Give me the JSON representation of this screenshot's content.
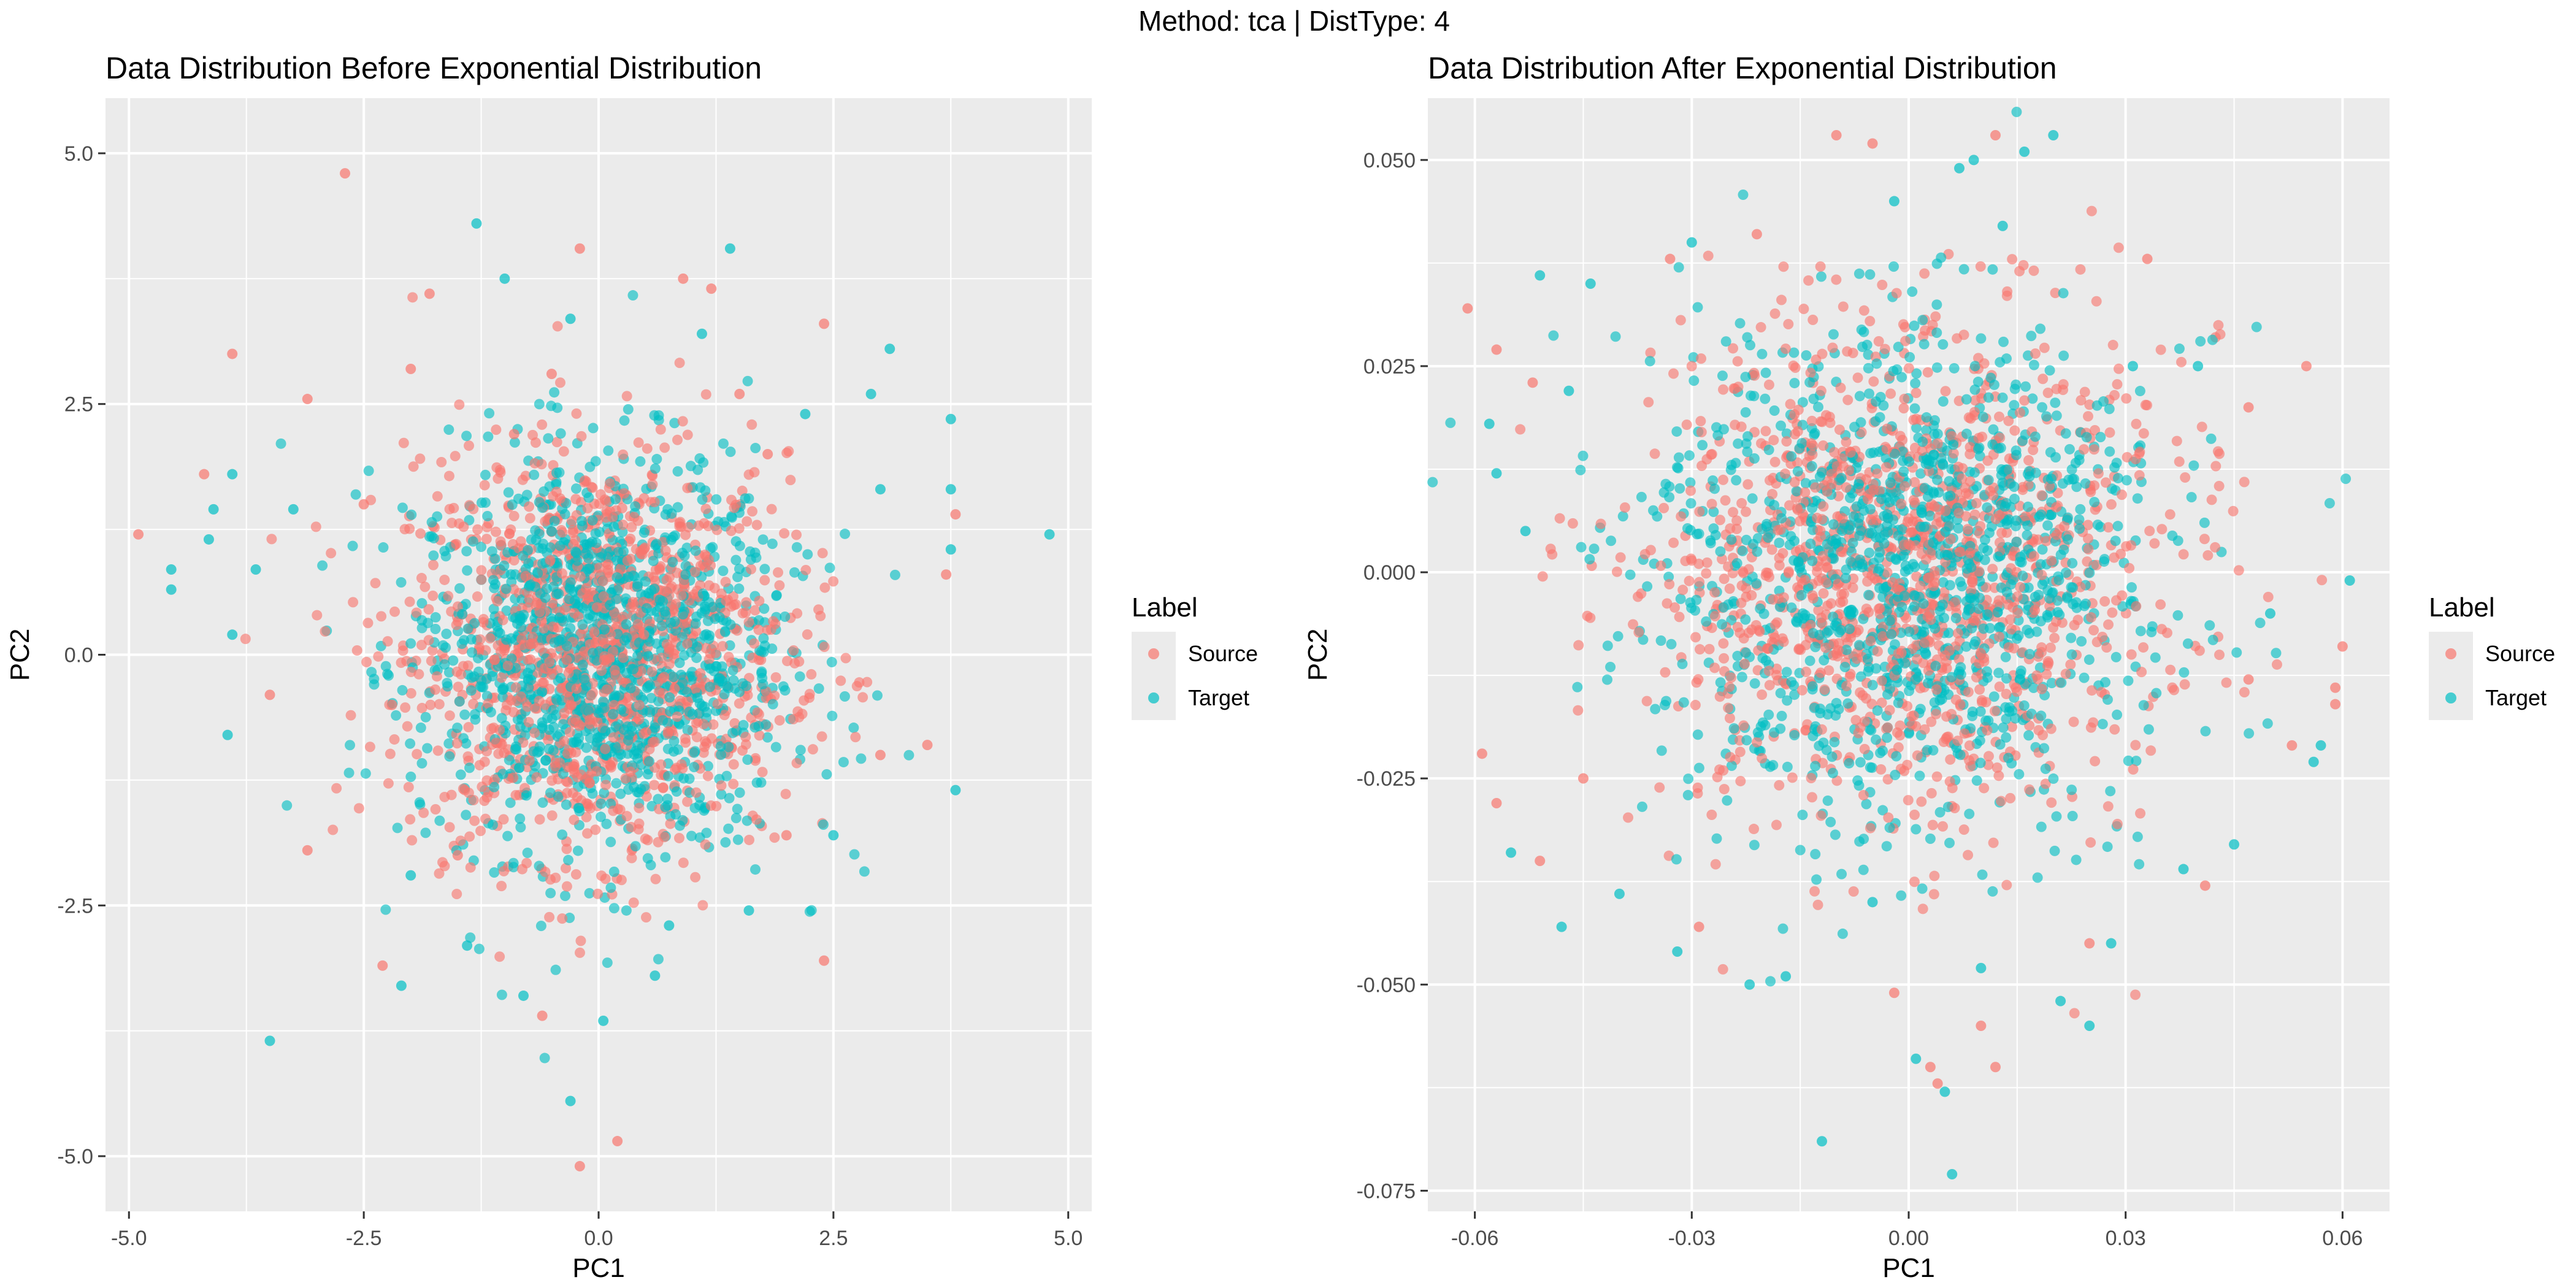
{
  "suptitle": "Method: tca | DistType: 4",
  "colors": {
    "source": "#F8766D",
    "target": "#00BFC4",
    "panel": "#EBEBEB",
    "grid": "#FFFFFF",
    "axis_text": "#4D4D4D"
  },
  "chart_data": [
    {
      "type": "scatter",
      "title": "Data Distribution Before Exponential Distribution",
      "xlabel": "PC1",
      "ylabel": "PC2",
      "xlim": [
        -5.25,
        5.25
      ],
      "ylim": [
        -5.55,
        5.55
      ],
      "xticks": [
        -5.0,
        -2.5,
        0.0,
        2.5,
        5.0
      ],
      "xtick_labels": [
        "-5.0",
        "-2.5",
        "0.0",
        "2.5",
        "5.0"
      ],
      "yticks": [
        -5.0,
        -2.5,
        0.0,
        2.5,
        5.0
      ],
      "ytick_labels": [
        "-5.0",
        "-2.5",
        "0.0",
        "2.5",
        "5.0"
      ],
      "grid": true,
      "legend": {
        "title": "Label",
        "position": "right",
        "entries": [
          "Source",
          "Target"
        ]
      },
      "series": [
        {
          "name": "Source",
          "color": "#F8766D",
          "points": [
            [
              -2.7,
              4.8
            ],
            [
              -0.2,
              4.05
            ],
            [
              1.2,
              3.65
            ],
            [
              -1.8,
              3.6
            ],
            [
              -3.9,
              3.0
            ],
            [
              -0.5,
              2.8
            ],
            [
              1.5,
              2.6
            ],
            [
              2.4,
              3.3
            ],
            [
              -2.0,
              2.85
            ],
            [
              0.9,
              3.75
            ],
            [
              -3.1,
              2.55
            ],
            [
              -4.2,
              1.8
            ],
            [
              -4.9,
              1.2
            ],
            [
              -3.5,
              -0.4
            ],
            [
              -3.1,
              -1.95
            ],
            [
              -2.3,
              -3.1
            ],
            [
              -0.6,
              -3.6
            ],
            [
              -0.2,
              -5.1
            ],
            [
              0.2,
              -4.85
            ],
            [
              2.4,
              -3.05
            ],
            [
              3.7,
              0.8
            ],
            [
              3.5,
              -0.9
            ],
            [
              3.0,
              -1.0
            ],
            [
              3.8,
              1.4
            ],
            [
              -0.9,
              2.2
            ],
            [
              1.8,
              2.0
            ],
            [
              -1.5,
              -2.0
            ],
            [
              2.0,
              -1.8
            ],
            [
              -2.5,
              1.5
            ],
            [
              -2.2,
              -0.5
            ]
          ]
        },
        {
          "name": "Target",
          "color": "#00BFC4",
          "points": [
            [
              -1.3,
              4.3
            ],
            [
              1.4,
              4.05
            ],
            [
              -1.0,
              3.75
            ],
            [
              -0.3,
              3.35
            ],
            [
              3.1,
              3.05
            ],
            [
              2.9,
              2.6
            ],
            [
              3.75,
              2.35
            ],
            [
              3.0,
              1.65
            ],
            [
              4.8,
              1.2
            ],
            [
              3.75,
              1.65
            ],
            [
              3.75,
              1.05
            ],
            [
              -4.55,
              0.85
            ],
            [
              -4.55,
              0.65
            ],
            [
              -4.1,
              1.45
            ],
            [
              -4.15,
              1.15
            ],
            [
              -3.9,
              1.8
            ],
            [
              -3.65,
              0.85
            ],
            [
              -3.9,
              0.2
            ],
            [
              -3.95,
              -0.8
            ],
            [
              -3.25,
              1.45
            ],
            [
              -3.5,
              -3.85
            ],
            [
              -2.1,
              -3.3
            ],
            [
              -0.3,
              -4.45
            ],
            [
              0.05,
              -3.65
            ],
            [
              0.6,
              -3.2
            ],
            [
              1.6,
              -2.55
            ],
            [
              2.5,
              -1.8
            ],
            [
              3.8,
              -1.35
            ],
            [
              -1.4,
              -2.9
            ],
            [
              -0.8,
              -3.4
            ],
            [
              0.75,
              -2.7
            ],
            [
              1.1,
              3.2
            ],
            [
              -2.0,
              -2.2
            ],
            [
              2.2,
              2.4
            ]
          ]
        }
      ]
    },
    {
      "type": "scatter",
      "title": "Data Distribution After Exponential Distribution",
      "xlabel": "PC1",
      "ylabel": "PC2",
      "xlim": [
        -0.0665,
        0.0665
      ],
      "ylim": [
        -0.0775,
        0.0575
      ],
      "xticks": [
        -0.06,
        -0.03,
        0.0,
        0.03,
        0.06
      ],
      "xtick_labels": [
        "-0.06",
        "-0.03",
        "0.00",
        "0.03",
        "0.06"
      ],
      "yticks": [
        -0.075,
        -0.05,
        -0.025,
        0.0,
        0.025,
        0.05
      ],
      "ytick_labels": [
        "-0.075",
        "-0.050",
        "-0.025",
        "0.000",
        "0.025",
        "0.050"
      ],
      "grid": true,
      "legend": {
        "title": "Label",
        "position": "right",
        "entries": [
          "Source",
          "Target"
        ]
      },
      "series": [
        {
          "name": "Source",
          "color": "#F8766D",
          "points": [
            [
              -0.061,
              0.032
            ],
            [
              -0.057,
              0.027
            ],
            [
              -0.052,
              0.023
            ],
            [
              -0.059,
              -0.022
            ],
            [
              -0.057,
              -0.028
            ],
            [
              -0.051,
              -0.035
            ],
            [
              0.055,
              0.025
            ],
            [
              0.06,
              -0.009
            ],
            [
              0.059,
              -0.014
            ],
            [
              0.059,
              -0.016
            ],
            [
              0.053,
              -0.021
            ],
            [
              -0.01,
              0.053
            ],
            [
              0.012,
              0.053
            ],
            [
              -0.005,
              0.052
            ],
            [
              -0.002,
              -0.051
            ],
            [
              0.003,
              -0.06
            ],
            [
              0.012,
              -0.06
            ],
            [
              0.01,
              -0.055
            ],
            [
              0.004,
              -0.062
            ],
            [
              -0.029,
              -0.043
            ],
            [
              0.041,
              -0.038
            ],
            [
              0.033,
              0.038
            ],
            [
              -0.033,
              0.038
            ],
            [
              -0.021,
              0.041
            ],
            [
              0.047,
              0.02
            ],
            [
              0.047,
              -0.013
            ],
            [
              -0.045,
              -0.025
            ],
            [
              0.025,
              -0.045
            ]
          ]
        },
        {
          "name": "Target",
          "color": "#00BFC4",
          "points": [
            [
              -0.051,
              0.036
            ],
            [
              -0.044,
              0.035
            ],
            [
              -0.058,
              0.018
            ],
            [
              -0.057,
              0.012
            ],
            [
              -0.053,
              0.005
            ],
            [
              -0.047,
              0.022
            ],
            [
              -0.055,
              -0.034
            ],
            [
              -0.048,
              -0.043
            ],
            [
              -0.04,
              -0.039
            ],
            [
              -0.032,
              -0.046
            ],
            [
              -0.022,
              -0.05
            ],
            [
              -0.017,
              -0.049
            ],
            [
              -0.005,
              -0.04
            ],
            [
              0.001,
              -0.059
            ],
            [
              0.005,
              -0.063
            ],
            [
              0.006,
              -0.073
            ],
            [
              -0.012,
              -0.069
            ],
            [
              0.021,
              -0.052
            ],
            [
              0.025,
              -0.055
            ],
            [
              0.028,
              -0.045
            ],
            [
              0.038,
              -0.036
            ],
            [
              0.045,
              -0.033
            ],
            [
              0.056,
              -0.023
            ],
            [
              0.057,
              -0.021
            ],
            [
              0.061,
              -0.001
            ],
            [
              0.05,
              -0.005
            ],
            [
              0.04,
              0.025
            ],
            [
              0.031,
              0.025
            ],
            [
              0.02,
              0.053
            ],
            [
              0.016,
              0.051
            ],
            [
              0.009,
              0.05
            ],
            [
              0.007,
              0.049
            ],
            [
              0.013,
              0.042
            ],
            [
              -0.002,
              0.045
            ],
            [
              0.01,
              -0.048
            ],
            [
              -0.03,
              0.04
            ]
          ]
        }
      ]
    }
  ]
}
